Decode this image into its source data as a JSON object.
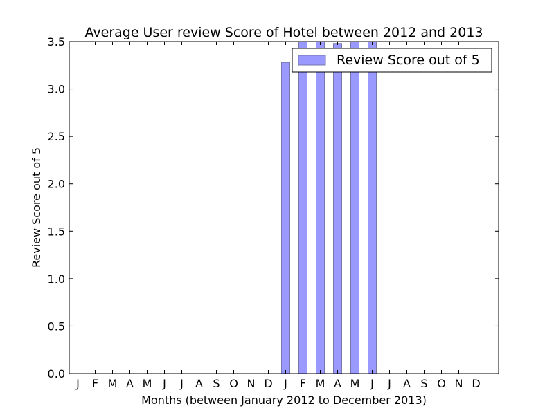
{
  "chart_data": {
    "type": "bar",
    "title": "Average User review Score of Hotel between 2012 and 2013",
    "xlabel": "Months (between January 2012 to December 2013)",
    "ylabel": "Review Score out of 5",
    "categories": [
      "J",
      "F",
      "M",
      "A",
      "M",
      "J",
      "J",
      "A",
      "S",
      "O",
      "N",
      "D",
      "J",
      "F",
      "M",
      "A",
      "M",
      "J",
      "J",
      "A",
      "S",
      "O",
      "N",
      "D"
    ],
    "series": [
      {
        "name": "Review Score out of 5",
        "color": "#9999ff",
        "edge_color": "#7777aa",
        "values": [
          null,
          null,
          null,
          null,
          null,
          null,
          null,
          null,
          null,
          null,
          null,
          null,
          3.28,
          3.6,
          3.6,
          3.48,
          3.6,
          3.6,
          null,
          null,
          null,
          null,
          null,
          null
        ]
      }
    ],
    "ylim": [
      0,
      3.5
    ],
    "yticks": [
      "0.0",
      "0.5",
      "1.0",
      "1.5",
      "2.0",
      "2.5",
      "3.0",
      "3.5"
    ],
    "grid": false,
    "legend": "top-right"
  }
}
